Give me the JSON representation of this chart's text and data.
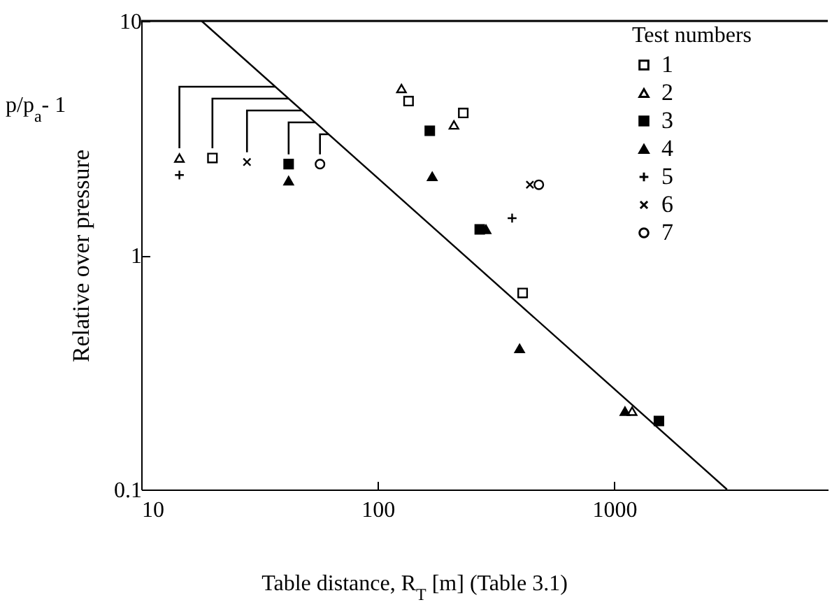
{
  "chart_data": {
    "type": "scatter",
    "xlabel": "Table distance, R$_{T}$ [m] (Table 3.1)",
    "ylabel": "Relative over pressure",
    "annotations": [
      "p/p$_{a}$- 1"
    ],
    "legend_title": "Test numbers",
    "legend": "top right",
    "log": "xy",
    "grid": false,
    "xlim": [
      10,
      8000
    ],
    "xticks": [
      10,
      100,
      1000
    ],
    "ylim": [
      0.1,
      10
    ],
    "yticks": [
      0.1,
      1,
      10
    ],
    "series": [
      {
        "name": "1",
        "color": "#ffffff",
        "marker": "square",
        "x": [
          20,
          135,
          230,
          410
        ],
        "values": [
          2.6,
          4.55,
          4.05,
          0.69
        ]
      },
      {
        "name": "2",
        "color": "#ffffff",
        "marker": "triangle",
        "x": [
          14.5,
          126,
          210,
          1190
        ],
        "values": [
          2.6,
          5.15,
          3.6,
          0.216
        ]
      },
      {
        "name": "3",
        "color": "#000000",
        "marker": "square",
        "x": [
          42,
          166,
          270,
          1545
        ],
        "values": [
          2.45,
          3.4,
          1.29,
          0.196
        ]
      },
      {
        "name": "4",
        "color": "#000000",
        "marker": "triangle",
        "x": [
          42,
          170,
          287,
          398,
          1110
        ],
        "values": [
          2.08,
          2.17,
          1.29,
          0.4,
          0.216
        ]
      },
      {
        "name": "5",
        "color": "#000000",
        "marker": "cross",
        "x": [
          14.5,
          370
        ],
        "values": [
          2.2,
          1.44
        ]
      },
      {
        "name": "6",
        "color": "#000000",
        "marker": "x",
        "x": [
          28,
          440
        ],
        "values": [
          2.5,
          2.0
        ]
      },
      {
        "name": "7",
        "color": "#ffffff",
        "marker": "circle",
        "x": [
          57,
          480
        ],
        "values": [
          2.45,
          2.0
        ]
      },
      {
        "type": "line",
        "color": "#000000",
        "marker": "none",
        "line_style": "solid",
        "x": [
          18,
          3000
        ],
        "values": [
          10,
          0.1
        ]
      }
    ]
  }
}
